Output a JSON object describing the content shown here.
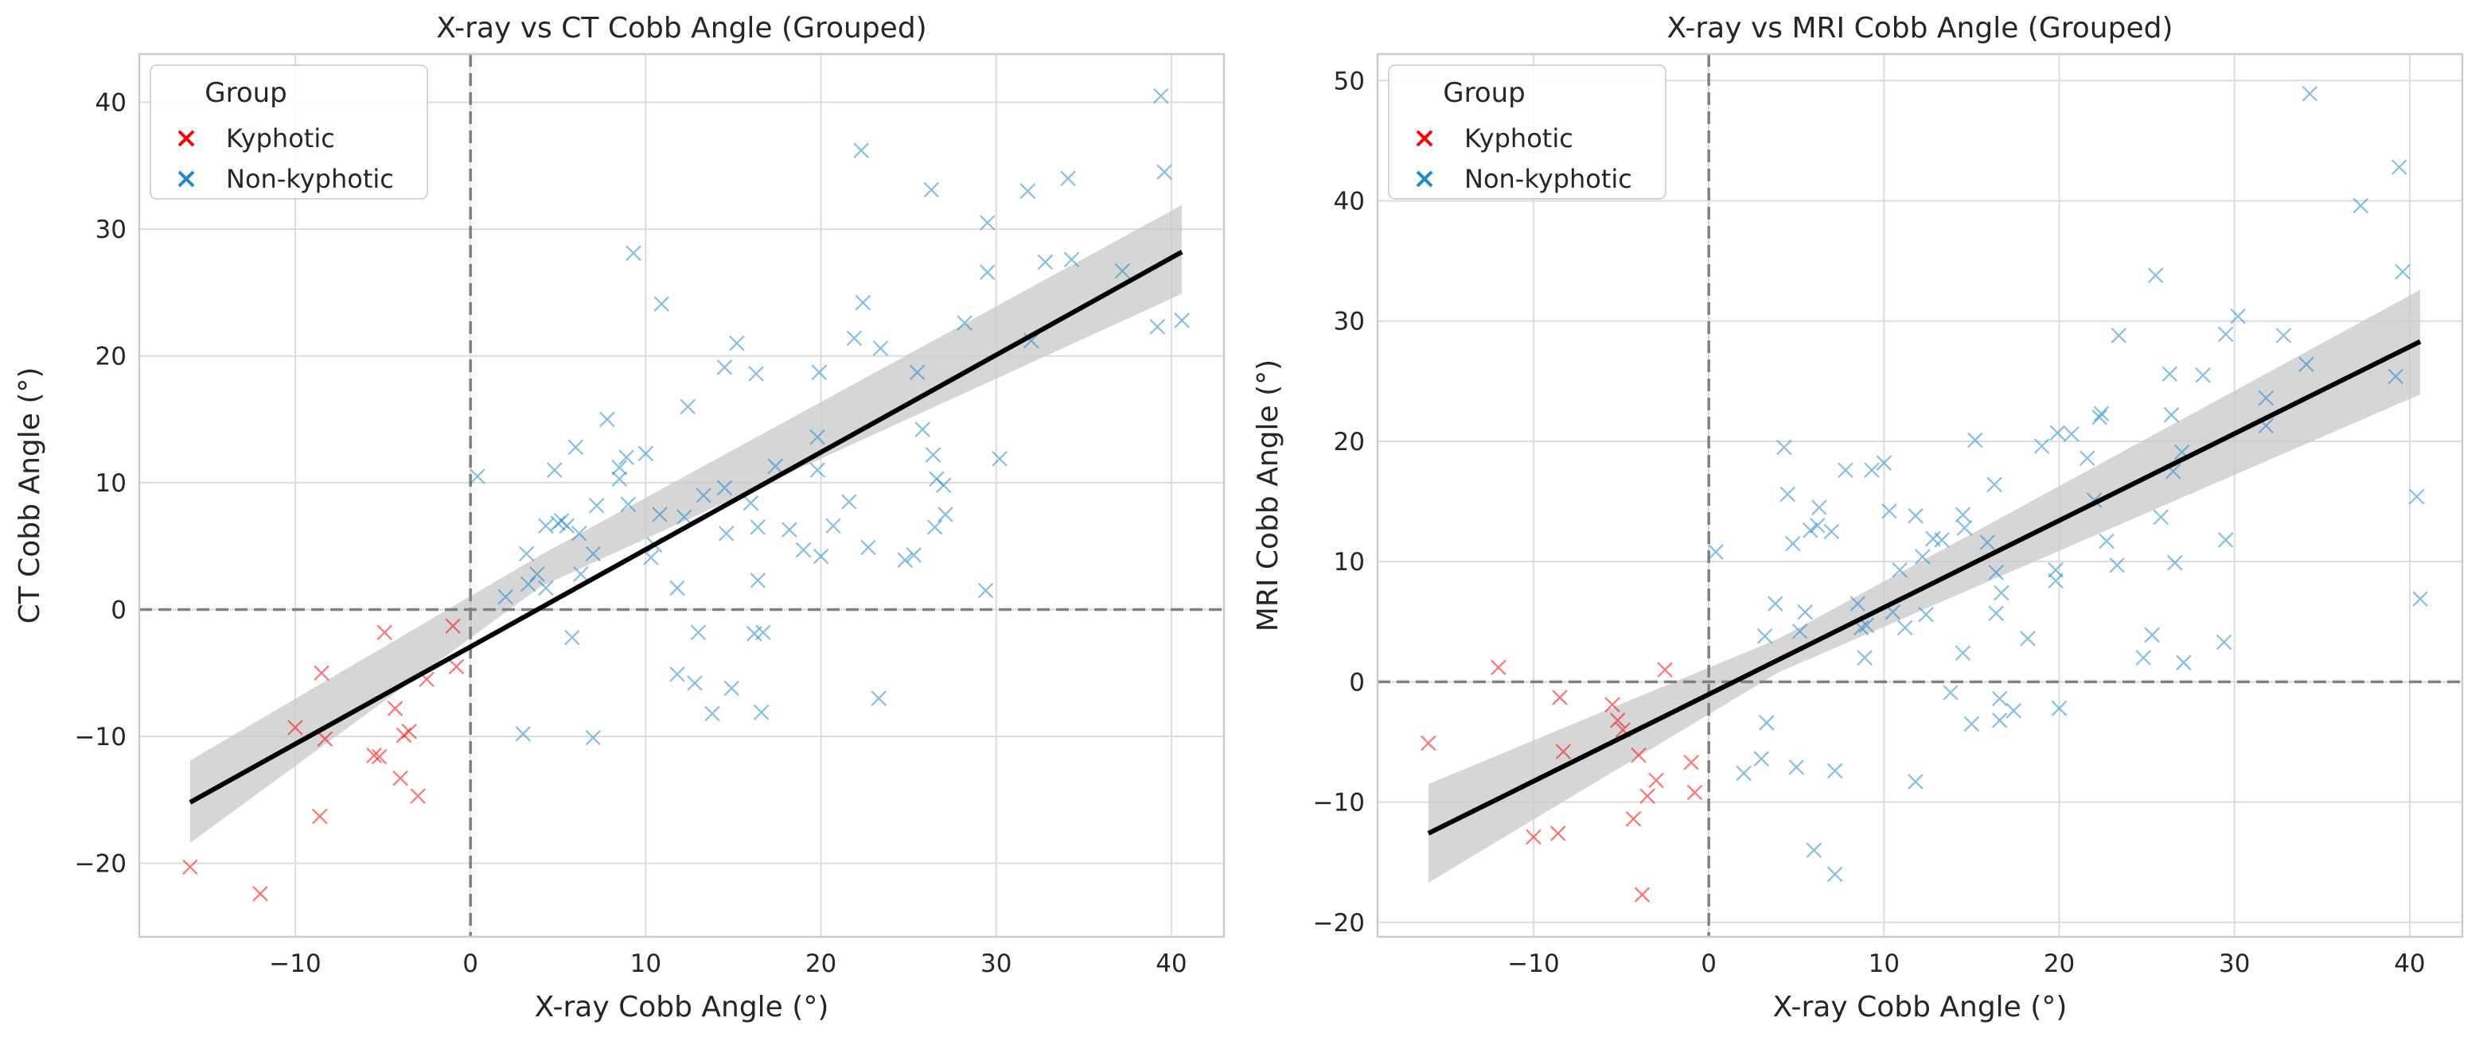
{
  "chart_data": [
    {
      "type": "scatter",
      "title": "X-ray vs CT Cobb Angle (Grouped)",
      "xlabel": "X-ray Cobb Angle (°)",
      "ylabel": "CT Cobb Angle (°)",
      "xlim": [
        -18.9,
        43.0
      ],
      "ylim": [
        -25.8,
        43.8
      ],
      "xticks": [
        -10,
        0,
        10,
        20,
        30,
        40
      ],
      "yticks": [
        -20,
        -10,
        0,
        10,
        20,
        30,
        40
      ],
      "xtick_labels": [
        "−10",
        "0",
        "10",
        "20",
        "30",
        "40"
      ],
      "ytick_labels": [
        "−20",
        "−10",
        "0",
        "10",
        "20",
        "30",
        "40"
      ],
      "grid": true,
      "reference_lines": {
        "x": 0,
        "y": 0
      },
      "legend": {
        "title": "Group",
        "placement": "top-left"
      },
      "series": [
        {
          "name": "Kyphotic",
          "color": "#ff0000",
          "marker": "x",
          "points": [
            [
              -16.0,
              -20.3
            ],
            [
              -12.0,
              -22.4
            ],
            [
              -10.0,
              -9.3
            ],
            [
              -8.6,
              -16.3
            ],
            [
              -8.5,
              -5.0
            ],
            [
              -8.3,
              -10.2
            ],
            [
              -5.5,
              -11.5
            ],
            [
              -5.2,
              -11.6
            ],
            [
              -4.9,
              -1.8
            ],
            [
              -4.3,
              -7.8
            ],
            [
              -4.0,
              -13.3
            ],
            [
              -3.8,
              -9.9
            ],
            [
              -3.5,
              -9.6
            ],
            [
              -3.0,
              -14.7
            ],
            [
              -2.5,
              -5.5
            ],
            [
              -1.0,
              -1.3
            ],
            [
              -0.8,
              -4.5
            ]
          ]
        },
        {
          "name": "Non-kyphotic",
          "color": "#1f8ad0",
          "marker": "x",
          "points": [
            [
              0.4,
              10.5
            ],
            [
              2.0,
              1.0
            ],
            [
              3.0,
              -9.8
            ],
            [
              3.2,
              4.4
            ],
            [
              3.3,
              2.0
            ],
            [
              3.8,
              2.8
            ],
            [
              4.3,
              6.6
            ],
            [
              4.3,
              1.7
            ],
            [
              4.8,
              11.0
            ],
            [
              5.0,
              6.8
            ],
            [
              5.2,
              7.0
            ],
            [
              5.5,
              6.6
            ],
            [
              5.8,
              -2.2
            ],
            [
              6.0,
              12.8
            ],
            [
              6.2,
              6.0
            ],
            [
              6.3,
              2.8
            ],
            [
              7.0,
              -10.1
            ],
            [
              7.0,
              4.4
            ],
            [
              7.2,
              8.2
            ],
            [
              7.8,
              15.0
            ],
            [
              8.5,
              11.2
            ],
            [
              8.5,
              10.3
            ],
            [
              8.9,
              12.0
            ],
            [
              9.0,
              8.3
            ],
            [
              9.3,
              28.1
            ],
            [
              10.0,
              12.3
            ],
            [
              10.3,
              4.1
            ],
            [
              10.5,
              5.1
            ],
            [
              10.8,
              7.5
            ],
            [
              10.9,
              24.1
            ],
            [
              11.8,
              -5.1
            ],
            [
              11.8,
              1.7
            ],
            [
              12.2,
              7.3
            ],
            [
              12.4,
              16.0
            ],
            [
              12.8,
              -5.8
            ],
            [
              13.0,
              -1.8
            ],
            [
              13.3,
              9.0
            ],
            [
              13.8,
              -8.2
            ],
            [
              14.5,
              9.6
            ],
            [
              14.5,
              19.1
            ],
            [
              14.6,
              6.0
            ],
            [
              14.9,
              -6.2
            ],
            [
              15.2,
              21.0
            ],
            [
              16.0,
              8.4
            ],
            [
              16.2,
              -1.9
            ],
            [
              16.3,
              18.6
            ],
            [
              16.4,
              6.5
            ],
            [
              16.4,
              2.3
            ],
            [
              16.6,
              -8.1
            ],
            [
              16.7,
              -1.8
            ],
            [
              17.4,
              11.3
            ],
            [
              18.2,
              6.3
            ],
            [
              19.0,
              4.7
            ],
            [
              19.8,
              13.6
            ],
            [
              19.8,
              11.0
            ],
            [
              19.9,
              18.7
            ],
            [
              20.0,
              4.2
            ],
            [
              20.7,
              6.6
            ],
            [
              21.6,
              8.5
            ],
            [
              21.9,
              21.4
            ],
            [
              22.3,
              36.2
            ],
            [
              22.4,
              24.2
            ],
            [
              22.7,
              4.9
            ],
            [
              23.3,
              -7.0
            ],
            [
              23.4,
              20.6
            ],
            [
              24.8,
              3.9
            ],
            [
              25.3,
              4.3
            ],
            [
              25.5,
              18.7
            ],
            [
              25.8,
              14.2
            ],
            [
              26.3,
              33.1
            ],
            [
              26.4,
              12.2
            ],
            [
              26.5,
              6.5
            ],
            [
              26.6,
              10.3
            ],
            [
              27.0,
              9.8
            ],
            [
              27.1,
              7.5
            ],
            [
              28.2,
              22.6
            ],
            [
              29.4,
              1.5
            ],
            [
              29.5,
              30.5
            ],
            [
              29.5,
              26.6
            ],
            [
              30.2,
              11.9
            ],
            [
              31.8,
              33.0
            ],
            [
              32.0,
              21.2
            ],
            [
              32.8,
              27.4
            ],
            [
              34.1,
              34.0
            ],
            [
              34.3,
              27.6
            ],
            [
              37.2,
              26.7
            ],
            [
              39.2,
              22.3
            ],
            [
              39.4,
              40.5
            ],
            [
              39.6,
              34.5
            ],
            [
              40.6,
              22.8
            ]
          ]
        }
      ],
      "regression": {
        "x": [
          -16.0,
          40.6
        ],
        "y": [
          -15.2,
          28.2
        ],
        "ci_low": [
          -18.4,
          24.9
        ],
        "ci_high": [
          -11.9,
          31.9
        ],
        "ci_mid": [
          [
            4.0,
            1.8
          ],
          [
            4.0,
            4.3
          ]
        ],
        "color": "#000000"
      }
    },
    {
      "type": "scatter",
      "title": "X-ray vs MRI Cobb Angle (Grouped)",
      "xlabel": "X-ray Cobb Angle (°)",
      "ylabel": "MRI Cobb Angle (°)",
      "xlim": [
        -18.9,
        43.0
      ],
      "ylim": [
        -21.2,
        52.2
      ],
      "xticks": [
        -10,
        0,
        10,
        20,
        30,
        40
      ],
      "yticks": [
        -20,
        -10,
        0,
        10,
        20,
        30,
        40,
        50
      ],
      "xtick_labels": [
        "−10",
        "0",
        "10",
        "20",
        "30",
        "40"
      ],
      "ytick_labels": [
        "−20",
        "−10",
        "0",
        "10",
        "20",
        "30",
        "40",
        "50"
      ],
      "grid": true,
      "reference_lines": {
        "x": 0,
        "y": 0
      },
      "legend": {
        "title": "Group",
        "placement": "top-left"
      },
      "series": [
        {
          "name": "Kyphotic",
          "color": "#ff0000",
          "marker": "x",
          "points": [
            [
              -16.0,
              -5.1
            ],
            [
              -12.0,
              1.2
            ],
            [
              -10.0,
              -12.9
            ],
            [
              -8.6,
              -12.6
            ],
            [
              -8.5,
              -1.3
            ],
            [
              -8.3,
              -5.8
            ],
            [
              -5.5,
              -1.9
            ],
            [
              -5.2,
              -3.2
            ],
            [
              -4.9,
              -4.0
            ],
            [
              -4.3,
              -11.4
            ],
            [
              -4.0,
              -6.1
            ],
            [
              -3.8,
              -17.7
            ],
            [
              -3.5,
              -9.5
            ],
            [
              -3.0,
              -8.2
            ],
            [
              -2.5,
              1.0
            ],
            [
              -1.0,
              -6.7
            ],
            [
              -0.8,
              -9.2
            ]
          ]
        },
        {
          "name": "Non-kyphotic",
          "color": "#1f8ad0",
          "marker": "x",
          "points": [
            [
              0.4,
              10.8
            ],
            [
              2.0,
              -7.6
            ],
            [
              3.0,
              -6.4
            ],
            [
              3.2,
              3.8
            ],
            [
              3.3,
              -3.4
            ],
            [
              3.8,
              6.5
            ],
            [
              4.3,
              19.5
            ],
            [
              4.5,
              15.6
            ],
            [
              4.8,
              11.5
            ],
            [
              5.0,
              -7.1
            ],
            [
              5.2,
              4.2
            ],
            [
              5.5,
              5.8
            ],
            [
              5.8,
              12.6
            ],
            [
              6.0,
              -14.0
            ],
            [
              6.2,
              13.0
            ],
            [
              6.3,
              14.5
            ],
            [
              7.0,
              12.5
            ],
            [
              7.2,
              -7.4
            ],
            [
              7.2,
              -16.0
            ],
            [
              7.8,
              17.6
            ],
            [
              8.5,
              6.5
            ],
            [
              8.7,
              4.5
            ],
            [
              8.9,
              2.0
            ],
            [
              9.0,
              4.7
            ],
            [
              9.3,
              17.6
            ],
            [
              10.0,
              18.2
            ],
            [
              10.3,
              14.2
            ],
            [
              10.5,
              5.8
            ],
            [
              10.9,
              9.3
            ],
            [
              11.2,
              4.5
            ],
            [
              11.8,
              13.8
            ],
            [
              11.8,
              -8.3
            ],
            [
              12.2,
              10.4
            ],
            [
              12.4,
              5.6
            ],
            [
              12.8,
              11.9
            ],
            [
              13.3,
              11.8
            ],
            [
              13.8,
              -0.9
            ],
            [
              14.5,
              13.9
            ],
            [
              14.5,
              2.4
            ],
            [
              14.6,
              12.8
            ],
            [
              15.0,
              -3.5
            ],
            [
              15.2,
              20.1
            ],
            [
              15.9,
              11.6
            ],
            [
              16.3,
              16.4
            ],
            [
              16.4,
              9.1
            ],
            [
              16.4,
              5.7
            ],
            [
              16.6,
              -1.4
            ],
            [
              16.6,
              -3.2
            ],
            [
              16.7,
              7.4
            ],
            [
              17.4,
              -2.4
            ],
            [
              18.2,
              3.6
            ],
            [
              19.0,
              19.6
            ],
            [
              19.8,
              8.4
            ],
            [
              19.8,
              9.3
            ],
            [
              19.9,
              20.7
            ],
            [
              20.0,
              -2.2
            ],
            [
              20.7,
              20.6
            ],
            [
              21.6,
              18.6
            ],
            [
              22.0,
              15.1
            ],
            [
              22.3,
              22.0
            ],
            [
              22.4,
              22.3
            ],
            [
              22.7,
              11.7
            ],
            [
              23.3,
              9.7
            ],
            [
              23.4,
              28.8
            ],
            [
              24.8,
              2.0
            ],
            [
              25.3,
              3.9
            ],
            [
              25.5,
              33.8
            ],
            [
              25.8,
              13.7
            ],
            [
              26.3,
              25.6
            ],
            [
              26.4,
              22.2
            ],
            [
              26.5,
              17.5
            ],
            [
              26.6,
              9.9
            ],
            [
              27.0,
              19.1
            ],
            [
              27.1,
              1.6
            ],
            [
              28.2,
              25.5
            ],
            [
              29.4,
              3.3
            ],
            [
              29.5,
              28.9
            ],
            [
              29.5,
              11.8
            ],
            [
              30.2,
              30.4
            ],
            [
              31.8,
              23.6
            ],
            [
              31.8,
              21.3
            ],
            [
              32.8,
              28.8
            ],
            [
              34.1,
              26.4
            ],
            [
              34.3,
              48.9
            ],
            [
              37.2,
              39.6
            ],
            [
              39.2,
              25.4
            ],
            [
              39.4,
              42.8
            ],
            [
              39.6,
              34.1
            ],
            [
              40.4,
              15.4
            ],
            [
              40.6,
              6.9
            ]
          ]
        }
      ],
      "regression": {
        "x": [
          -16.0,
          40.6
        ],
        "y": [
          -12.6,
          28.3
        ],
        "ci_low": [
          -16.7,
          23.9
        ],
        "ci_high": [
          -8.5,
          32.6
        ],
        "ci_mid": [
          [
            4.0,
            0.8
          ],
          [
            4.0,
            3.6
          ]
        ],
        "color": "#000000"
      }
    }
  ]
}
